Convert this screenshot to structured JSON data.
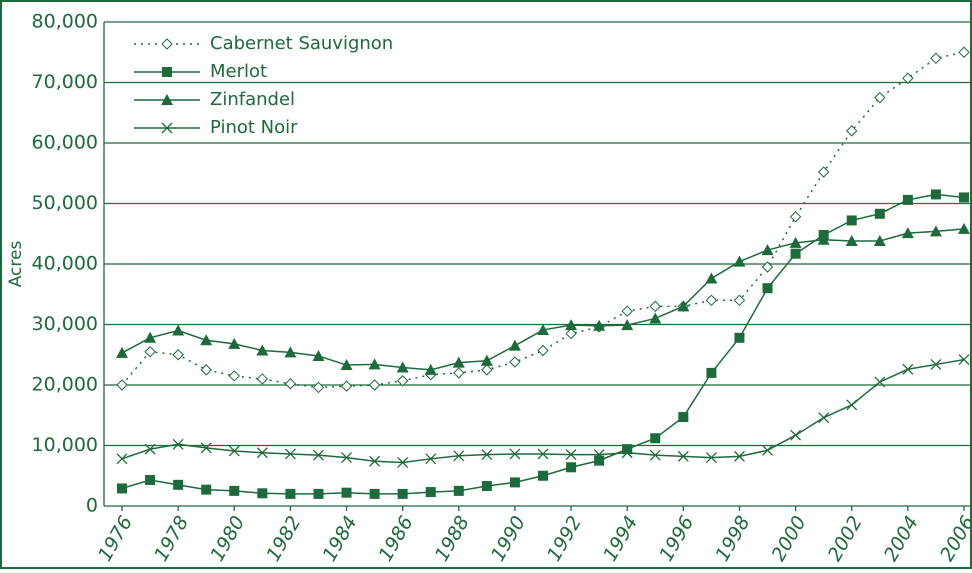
{
  "chart_data": {
    "type": "line",
    "y_label": "Acres",
    "x": [
      1976,
      1977,
      1978,
      1979,
      1980,
      1981,
      1982,
      1983,
      1984,
      1985,
      1986,
      1987,
      1988,
      1989,
      1990,
      1991,
      1992,
      1993,
      1994,
      1995,
      1996,
      1997,
      1998,
      1999,
      2000,
      2001,
      2002,
      2003,
      2004,
      2005,
      2006
    ],
    "xlim": [
      1976,
      2006
    ],
    "xticks": [
      1976,
      1978,
      1980,
      1982,
      1984,
      1986,
      1988,
      1990,
      1992,
      1994,
      1996,
      1998,
      2000,
      2002,
      2004,
      2006
    ],
    "ylim": [
      0,
      80000
    ],
    "yticks": [
      0,
      {
        "value": 10000,
        "label": "10,000"
      },
      {
        "value": 20000,
        "label": "20,000"
      },
      {
        "value": 30000,
        "label": "30,000"
      },
      {
        "value": 40000,
        "label": "40,000"
      },
      {
        "value": 50000,
        "label": "50,000"
      },
      {
        "value": 60000,
        "label": "60,000"
      },
      {
        "value": 70000,
        "label": "70,000"
      },
      {
        "value": 80000,
        "label": "80,000"
      }
    ],
    "grid": true,
    "legend": "top-left",
    "series": [
      {
        "name": "Cabernet Sauvignon",
        "color": "#1d6a3c",
        "line_style": "dotted",
        "marker": "diamond-open",
        "values": [
          20000,
          25500,
          25000,
          22500,
          21500,
          21000,
          20200,
          19600,
          19800,
          20000,
          20700,
          21700,
          22000,
          22500,
          23800,
          25700,
          28500,
          29600,
          32200,
          33000,
          33000,
          34000,
          34000,
          39500,
          47800,
          55200,
          62000,
          67500,
          70700,
          74000,
          75000
        ]
      },
      {
        "name": "Merlot",
        "color": "#1d6a3c",
        "line_style": "solid",
        "marker": "square",
        "values": [
          2900,
          4300,
          3500,
          2700,
          2500,
          2100,
          2000,
          2000,
          2200,
          2000,
          2000,
          2300,
          2500,
          3300,
          3900,
          5000,
          6400,
          7500,
          9400,
          11200,
          14700,
          22000,
          27800,
          36000,
          41700,
          44800,
          47200,
          48300,
          50600,
          51500,
          51000
        ]
      },
      {
        "name": "Zinfandel",
        "color": "#1d6a3c",
        "line_style": "solid",
        "marker": "triangle",
        "values": [
          25300,
          27800,
          29000,
          27400,
          26800,
          25700,
          25400,
          24800,
          23300,
          23400,
          22900,
          22500,
          23700,
          24000,
          26500,
          29100,
          29900,
          29800,
          29900,
          31000,
          33000,
          37600,
          40400,
          42300,
          43500,
          44000,
          43800,
          43800,
          45100,
          45400,
          45800
        ]
      },
      {
        "name": "Pinot Noir",
        "color": "#1d6a3c",
        "line_style": "solid",
        "marker": "x",
        "values": [
          7800,
          9400,
          10200,
          9600,
          9100,
          8800,
          8600,
          8400,
          8000,
          7400,
          7200,
          7800,
          8300,
          8500,
          8600,
          8600,
          8500,
          8500,
          8800,
          8400,
          8200,
          8000,
          8200,
          9200,
          11700,
          14600,
          16700,
          20500,
          22600,
          23400,
          24200
        ]
      }
    ]
  }
}
